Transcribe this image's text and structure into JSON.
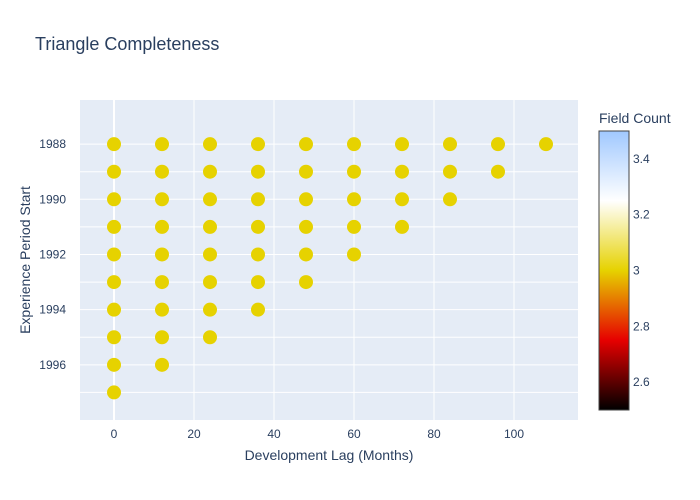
{
  "chart_data": {
    "type": "scatter",
    "title": "Triangle Completeness",
    "xlabel": "Development Lag (Months)",
    "ylabel": "Experience Period Start",
    "xlim": [
      -8.5,
      116
    ],
    "ylim": [
      1998.0,
      1986.4
    ],
    "x_ticks": [
      0,
      20,
      40,
      60,
      80,
      100
    ],
    "y_ticks": [
      1988,
      1990,
      1992,
      1994,
      1996
    ],
    "grid": true,
    "colorbar": {
      "title": "Field Count",
      "range": [
        2.5,
        3.5
      ],
      "ticks": [
        2.6,
        2.8,
        3,
        3.2,
        3.4
      ],
      "colorscale": [
        [
          0.0,
          "#000000"
        ],
        [
          0.25,
          "#e60000"
        ],
        [
          0.5,
          "#e6d200"
        ],
        [
          0.75,
          "#ffffff"
        ],
        [
          1.0,
          "#a0c8ff"
        ]
      ]
    },
    "marker_color_value": 3,
    "points": [
      {
        "experience_period_start": 1988,
        "development_lags": [
          0,
          12,
          24,
          36,
          48,
          60,
          72,
          84,
          96,
          108
        ]
      },
      {
        "experience_period_start": 1989,
        "development_lags": [
          0,
          12,
          24,
          36,
          48,
          60,
          72,
          84,
          96
        ]
      },
      {
        "experience_period_start": 1990,
        "development_lags": [
          0,
          12,
          24,
          36,
          48,
          60,
          72,
          84
        ]
      },
      {
        "experience_period_start": 1991,
        "development_lags": [
          0,
          12,
          24,
          36,
          48,
          60,
          72
        ]
      },
      {
        "experience_period_start": 1992,
        "development_lags": [
          0,
          12,
          24,
          36,
          48,
          60
        ]
      },
      {
        "experience_period_start": 1993,
        "development_lags": [
          0,
          12,
          24,
          36,
          48
        ]
      },
      {
        "experience_period_start": 1994,
        "development_lags": [
          0,
          12,
          24,
          36
        ]
      },
      {
        "experience_period_start": 1995,
        "development_lags": [
          0,
          12,
          24
        ]
      },
      {
        "experience_period_start": 1996,
        "development_lags": [
          0,
          12
        ]
      },
      {
        "experience_period_start": 1997,
        "development_lags": [
          0
        ]
      }
    ]
  }
}
